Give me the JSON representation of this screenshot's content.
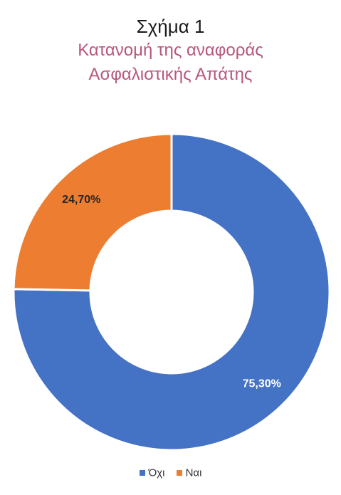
{
  "figure": {
    "label": "Σχήμα 1",
    "subtitle_lines": [
      "Κατανομή της αναφοράς",
      "Ασφαλιστικής Απάτης"
    ],
    "subtitle_color": "#b8567e"
  },
  "chart_data": {
    "type": "pie",
    "style": "donut",
    "title": "Κατανομή της αναφοράς Ασφαλιστικής Απάτης",
    "series": [
      {
        "name": "Όχι",
        "value": 75.3,
        "label": "75,30%",
        "color": "#4472c4"
      },
      {
        "name": "Ναι",
        "value": 24.7,
        "label": "24,70%",
        "color": "#ed7d31"
      }
    ],
    "legend_position": "bottom",
    "label_color": "#262626"
  },
  "legend": {
    "items": [
      {
        "label": "Όχι",
        "color": "#4472c4"
      },
      {
        "label": "Ναι",
        "color": "#ed7d31"
      }
    ]
  }
}
